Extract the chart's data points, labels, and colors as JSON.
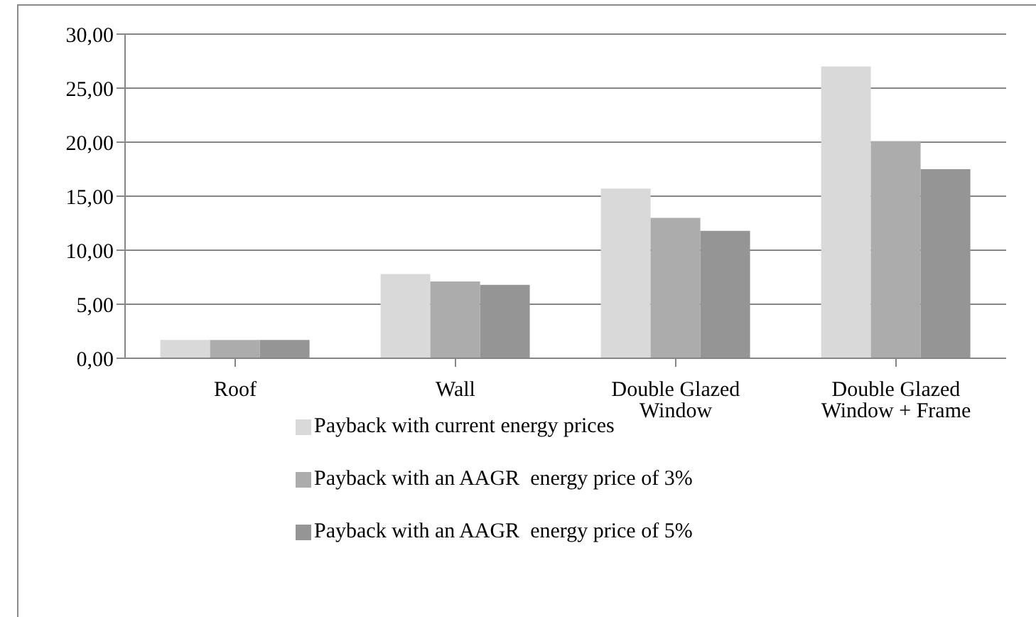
{
  "chart_data": {
    "type": "bar",
    "categories": [
      "Roof",
      "Wall",
      "Double Glazed Window",
      "Double Glazed Window + Frame"
    ],
    "series": [
      {
        "name": "Payback with current energy prices",
        "color": "#d9d9d9",
        "values": [
          1.7,
          7.8,
          15.7,
          27.0
        ]
      },
      {
        "name": "Payback with an AAGR  energy price of 3%",
        "color": "#acacac",
        "values": [
          1.7,
          7.1,
          13.0,
          20.1
        ]
      },
      {
        "name": "Payback with an AAGR  energy price of 5%",
        "color": "#959595",
        "values": [
          1.7,
          6.8,
          11.8,
          17.5
        ]
      }
    ],
    "ylim": [
      0,
      30
    ],
    "yticks": [
      {
        "value": 0,
        "label": "0,00"
      },
      {
        "value": 5,
        "label": "5,00"
      },
      {
        "value": 10,
        "label": "10,00"
      },
      {
        "value": 15,
        "label": "15,00"
      },
      {
        "value": 20,
        "label": "20,00"
      },
      {
        "value": 25,
        "label": "25,00"
      },
      {
        "value": 30,
        "label": "30,00"
      }
    ],
    "grid": "y",
    "legend": "bottom"
  }
}
